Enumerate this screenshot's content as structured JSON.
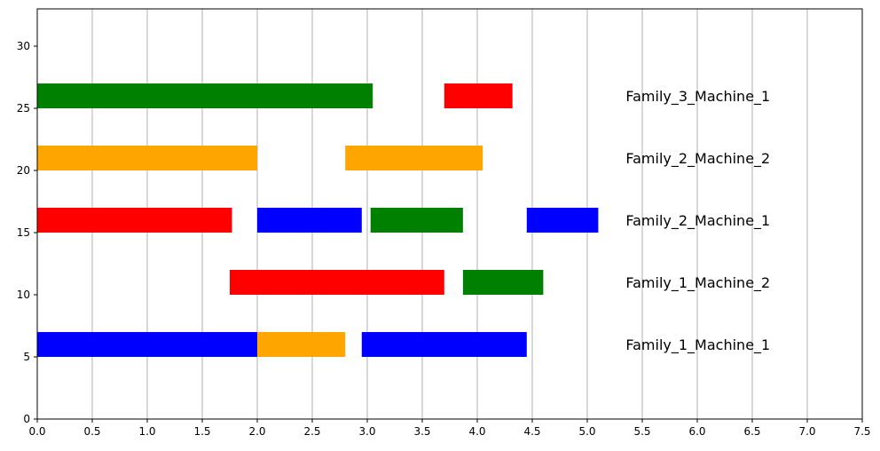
{
  "chart_data": {
    "type": "bar",
    "title": "",
    "xlabel": "",
    "ylabel": "",
    "xlim": [
      0,
      7.5
    ],
    "ylim": [
      0,
      33
    ],
    "grid": "vertical",
    "xticks": [
      "0.0",
      "0.5",
      "1.0",
      "1.5",
      "2.0",
      "2.5",
      "3.0",
      "3.5",
      "4.0",
      "4.5",
      "5.0",
      "5.5",
      "6.0",
      "6.5",
      "7.0",
      "7.5"
    ],
    "yticks": [
      "0",
      "5",
      "10",
      "15",
      "20",
      "25",
      "30"
    ],
    "rows": [
      {
        "label": "Family_1_Machine_1",
        "y_start": 5,
        "height": 2,
        "tasks": [
          {
            "start": 0.0,
            "end": 2.0,
            "color": "#0000ff"
          },
          {
            "start": 2.0,
            "end": 2.8,
            "color": "#ffa500"
          },
          {
            "start": 2.95,
            "end": 4.45,
            "color": "#0000ff"
          }
        ]
      },
      {
        "label": "Family_1_Machine_2",
        "y_start": 10,
        "height": 2,
        "tasks": [
          {
            "start": 1.75,
            "end": 3.7,
            "color": "#ff0000"
          },
          {
            "start": 3.87,
            "end": 4.6,
            "color": "#008000"
          }
        ]
      },
      {
        "label": "Family_2_Machine_1",
        "y_start": 15,
        "height": 2,
        "tasks": [
          {
            "start": 0.0,
            "end": 1.77,
            "color": "#ff0000"
          },
          {
            "start": 2.0,
            "end": 2.95,
            "color": "#0000ff"
          },
          {
            "start": 3.03,
            "end": 3.87,
            "color": "#008000"
          },
          {
            "start": 4.45,
            "end": 5.1,
            "color": "#0000ff"
          }
        ]
      },
      {
        "label": "Family_2_Machine_2",
        "y_start": 20,
        "height": 2,
        "tasks": [
          {
            "start": 0.0,
            "end": 2.0,
            "color": "#ffa500"
          },
          {
            "start": 2.8,
            "end": 4.05,
            "color": "#ffa500"
          }
        ]
      },
      {
        "label": "Family_3_Machine_1",
        "y_start": 25,
        "height": 2,
        "tasks": [
          {
            "start": 0.0,
            "end": 3.05,
            "color": "#008000"
          },
          {
            "start": 3.7,
            "end": 4.32,
            "color": "#ff0000"
          }
        ]
      }
    ]
  }
}
